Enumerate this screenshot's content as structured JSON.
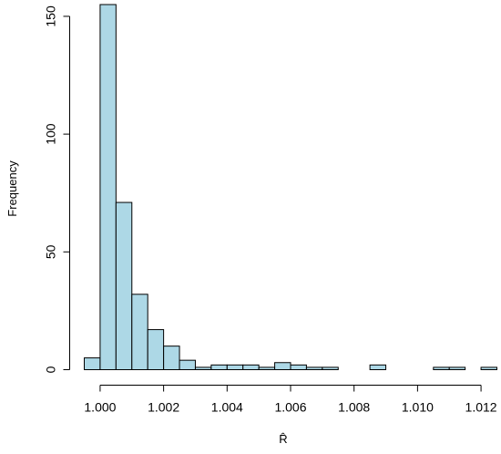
{
  "chart_data": {
    "type": "bar",
    "subtype": "histogram",
    "bin_width": 0.0005,
    "x_bin_starts": [
      0.9995,
      1.0,
      1.0005,
      1.001,
      1.0015,
      1.002,
      1.0025,
      1.003,
      1.0035,
      1.004,
      1.0045,
      1.005,
      1.0055,
      1.006,
      1.0065,
      1.007,
      1.0075,
      1.008,
      1.0085,
      1.009,
      1.0095,
      1.01,
      1.0105,
      1.011,
      1.0115,
      1.012
    ],
    "values": [
      5,
      155,
      71,
      32,
      17,
      10,
      4,
      1,
      2,
      2,
      2,
      1,
      3,
      2,
      1,
      1,
      0,
      0,
      2,
      0,
      0,
      0,
      1,
      1,
      0,
      1
    ],
    "xlabel": "R̂",
    "ylabel": "Frequency",
    "xticks": [
      "1.000",
      "1.002",
      "1.004",
      "1.006",
      "1.008",
      "1.010",
      "1.012"
    ],
    "yticks": [
      "0",
      "50",
      "100",
      "150"
    ],
    "ylim": [
      0,
      155
    ],
    "xlim": [
      0.9995,
      1.0125
    ],
    "bar_color": "#add8e6",
    "grid": false
  }
}
